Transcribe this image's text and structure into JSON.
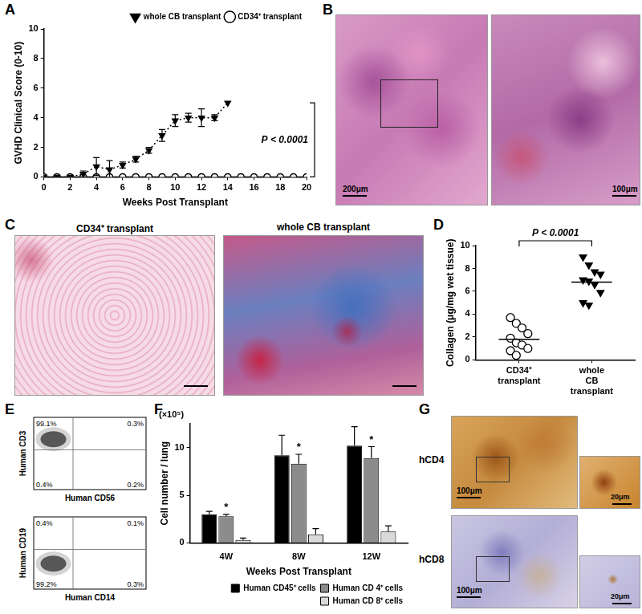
{
  "chart_data": [
    {
      "panel": "A",
      "type": "line",
      "x": [
        0,
        1,
        2,
        3,
        4,
        5,
        6,
        7,
        8,
        9,
        10,
        11,
        12,
        13,
        14,
        15,
        16,
        17,
        18,
        19,
        20
      ],
      "series": [
        {
          "name": "whole CB transplant",
          "color": "#000000",
          "marker": "triangle-down",
          "line_style": "dotted",
          "values": [
            0,
            0,
            0,
            0.2,
            0.7,
            0.5,
            0.8,
            1.2,
            1.8,
            2.8,
            3.8,
            4.0,
            4.0,
            4.0,
            5.0,
            null,
            null,
            null,
            null,
            null,
            null
          ],
          "errors": [
            null,
            null,
            null,
            0.2,
            0.6,
            0.6,
            0.2,
            0.2,
            0.2,
            0.4,
            0.4,
            0.3,
            0.6,
            0.2,
            null,
            null,
            null,
            null,
            null,
            null,
            null
          ]
        },
        {
          "name": "CD34⁺ transplant",
          "color": "#000000",
          "marker": "circle-open",
          "line_style": "solid",
          "values": [
            0,
            0,
            0,
            0,
            0,
            0,
            0,
            0,
            0,
            0,
            0,
            0,
            0,
            0,
            0,
            0,
            0,
            0,
            0,
            0,
            0
          ]
        }
      ],
      "xlabel": "Weeks Post Transplant",
      "ylabel": "GVHD Clinical Score (0-10)",
      "xlim": [
        0,
        20
      ],
      "xticks": [
        0,
        2,
        4,
        6,
        8,
        10,
        12,
        14,
        16,
        18,
        20
      ],
      "ylim": [
        0,
        10
      ],
      "yticks": [
        0,
        2,
        4,
        6,
        8,
        10
      ],
      "grid": false,
      "legend": "top-right",
      "annotations": [
        "P < 0.0001"
      ]
    },
    {
      "panel": "D",
      "type": "scatter",
      "series": [
        {
          "name": "CD34⁺ transplant",
          "color": "#000000",
          "marker": "circle-open",
          "values": [
            3.7,
            3.2,
            2.8,
            2.3,
            1.9,
            1.5,
            1.3,
            1.0,
            0.8,
            0.4
          ],
          "mean": 1.8
        },
        {
          "name": "whole CB transplant",
          "color": "#000000",
          "marker": "triangle-down",
          "values": [
            9.0,
            8.3,
            7.7,
            7.5,
            7.0,
            6.9,
            6.6,
            5.9,
            5.0,
            4.8
          ],
          "mean": 6.8
        }
      ],
      "ylabel": "Collagen (μg/mg wet tissue)",
      "ylim": [
        0,
        10
      ],
      "yticks": [
        0,
        2,
        4,
        6,
        8,
        10
      ],
      "grid": false,
      "annotations": [
        "P < 0.0001"
      ]
    },
    {
      "panel": "F",
      "type": "bar",
      "categories": [
        "4W",
        "8W",
        "12W"
      ],
      "series": [
        {
          "name": "Human CD45⁺ cells",
          "color": "#000000",
          "values": [
            3.0,
            9.2,
            10.2
          ],
          "errors": [
            0.3,
            2.1,
            2.0
          ]
        },
        {
          "name": "Human CD 4⁺ cells",
          "color": "#8c8c8c",
          "values": [
            2.8,
            8.3,
            8.9
          ],
          "errors": [
            0.2,
            1.0,
            1.2
          ],
          "annotations": [
            "*",
            "*",
            "*"
          ]
        },
        {
          "name": "Human CD 8⁺ cells",
          "color": "#d9d9d9",
          "values": [
            0.3,
            0.9,
            1.2
          ],
          "errors": [
            0.2,
            0.6,
            0.6
          ]
        }
      ],
      "xlabel": "Weeks Post Transplant",
      "ylabel": "Cell number / lung",
      "y_unit": "(×10⁵)",
      "ylim": [
        0,
        12.5
      ],
      "yticks": [
        0,
        5,
        10
      ],
      "grid": false,
      "legend": "bottom-right"
    }
  ],
  "figure_panels": {
    "B": {
      "panel": "B",
      "scale_bars": [
        "200μm",
        "100μm"
      ]
    },
    "C": {
      "panel": "C",
      "titles": [
        "CD34⁺ transplant",
        "whole CB transplant"
      ]
    },
    "E": {
      "panel": "E",
      "plots": [
        {
          "ylabel": "Human CD3",
          "xlabel": "Human CD56",
          "quadrants": [
            "99.1%",
            "0.3%",
            "0.4%",
            "0.2%"
          ]
        },
        {
          "ylabel": "Human CD19",
          "xlabel": "Human CD14",
          "quadrants": [
            "0.4%",
            "0.1%",
            "99.2%",
            "0.3%"
          ]
        }
      ]
    },
    "G": {
      "panel": "G",
      "rows": [
        {
          "label": "hCD4",
          "scale_bars": [
            "100μm",
            "20μm"
          ]
        },
        {
          "label": "hCD8",
          "scale_bars": [
            "100μm",
            "20μm"
          ]
        }
      ]
    }
  }
}
